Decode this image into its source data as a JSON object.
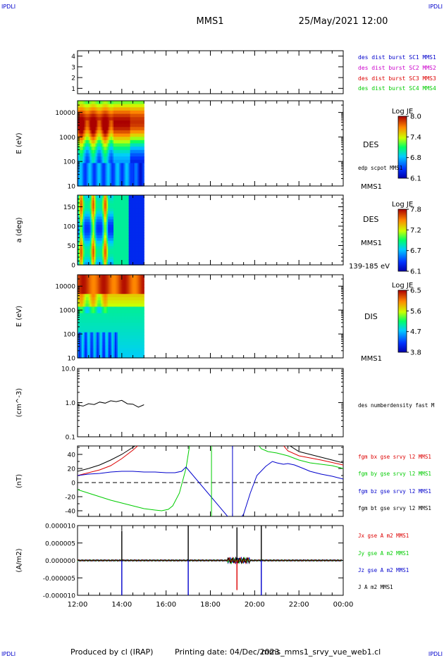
{
  "header": {
    "corner_tl": "IPDLI",
    "corner_tr": "IPDLI",
    "corner_bl": "IPDLI",
    "corner_br": "IPDLI",
    "spacecraft": "MMS1",
    "datetime": "25/May/2021 12:00"
  },
  "footer": {
    "produced_by": "Produced by cl (IRAP)",
    "printing_date": "Printing date: 04/Dec/2023",
    "filename": "mms_mms1_srvy_vue_web1.cl"
  },
  "colors": {
    "blue": "#0000cc",
    "magenta": "#cc00cc",
    "red": "#dd0000",
    "green": "#00cc00",
    "black": "#000000"
  },
  "x_axis": {
    "ticks": [
      "12:00",
      "14:00",
      "16:00",
      "18:00",
      "20:00",
      "22:00",
      "00:00"
    ],
    "range_hours": [
      12,
      24
    ]
  },
  "chart_data": [
    {
      "type": "line",
      "panel": "burst",
      "ylim": [
        0.5,
        4.5
      ],
      "yticks": [
        "1",
        "2",
        "3",
        "4"
      ],
      "legend": [
        {
          "label": "des dist burst SC1 MMS1",
          "color": "#0000cc"
        },
        {
          "label": "des dist burst SC2 MMS2",
          "color": "#cc00cc"
        },
        {
          "label": "des dist burst SC3 MMS3",
          "color": "#dd0000"
        },
        {
          "label": "des dist burst SC4 MMS4",
          "color": "#00cc00"
        }
      ]
    },
    {
      "type": "heatmap",
      "panel": "des_energy",
      "ylabel": "E (eV)",
      "yscale": "log",
      "yticks": [
        "10",
        "100",
        "1000",
        "10000"
      ],
      "ylim": [
        10,
        30000
      ],
      "x_data_end": 15.0,
      "colorbar": {
        "title": "Log JE",
        "ticks": [
          "8.0",
          "7.4",
          "6.8",
          "6.1"
        ],
        "range": [
          6.1,
          8.0
        ]
      },
      "side_labels": [
        "DES",
        "edp scpot MMS1",
        "MMS1"
      ]
    },
    {
      "type": "heatmap",
      "panel": "des_pitch",
      "ylabel": "a (deg)",
      "yticks": [
        "0",
        "50",
        "100",
        "150"
      ],
      "ylim": [
        0,
        180
      ],
      "x_data_end": 15.0,
      "colorbar": {
        "title": "Log JE",
        "ticks": [
          "7.8",
          "7.2",
          "6.7",
          "6.1"
        ],
        "range": [
          6.1,
          7.8
        ]
      },
      "side_labels": [
        "DES",
        "MMS1",
        "139-185 eV"
      ]
    },
    {
      "type": "heatmap",
      "panel": "dis_energy",
      "ylabel": "E (eV)",
      "yscale": "log",
      "yticks": [
        "10",
        "100",
        "1000",
        "10000"
      ],
      "ylim": [
        10,
        30000
      ],
      "x_data_end": 15.0,
      "colorbar": {
        "title": "Log JE",
        "ticks": [
          "6.5",
          "5.6",
          "4.7",
          "3.8"
        ],
        "range": [
          3.8,
          6.5
        ]
      },
      "side_labels": [
        "DIS",
        "MMS1"
      ]
    },
    {
      "type": "line",
      "panel": "density",
      "ylabel": "(cm^-3)",
      "yscale": "log",
      "yticks": [
        "10.0",
        "1.0",
        "0.1"
      ],
      "ylim": [
        0.1,
        10.0
      ],
      "series": [
        {
          "name": "des numberdensity fast M",
          "color": "#000000",
          "x": [
            12.0,
            12.25,
            12.5,
            12.75,
            13.0,
            13.25,
            13.5,
            13.75,
            14.0,
            14.25,
            14.5,
            14.75,
            15.0
          ],
          "y": [
            0.8,
            0.84,
            0.88,
            0.93,
            0.98,
            1.02,
            1.07,
            1.13,
            1.1,
            0.98,
            0.85,
            0.78,
            0.82
          ]
        }
      ]
    },
    {
      "type": "line",
      "panel": "fgm",
      "ylabel": "(nT)",
      "ylim": [
        -48,
        52
      ],
      "yticks": [
        "40",
        "20",
        "0",
        "-20",
        "-40"
      ],
      "series": [
        {
          "name": "fgm bx gse srvy l2 MMS1",
          "color": "#dd0000",
          "x": [
            12.0,
            12.5,
            13.0,
            13.5,
            14.0,
            14.5,
            15.0,
            21.1,
            21.5,
            22.0,
            22.5,
            23.0,
            24.0
          ],
          "y": [
            10,
            14,
            18,
            24,
            34,
            46,
            60,
            60,
            45,
            38,
            35,
            32,
            25
          ]
        },
        {
          "name": "fgm by gse srvy l2 MMS1",
          "color": "#00cc00",
          "x": [
            12.0,
            12.5,
            13.0,
            13.5,
            14.0,
            14.5,
            15.0,
            15.5,
            15.8,
            16.1,
            16.3,
            16.6,
            16.9,
            17.1,
            20.0,
            20.3,
            20.6,
            21.0,
            21.5,
            22.0,
            22.5,
            23.0,
            23.5,
            24.0
          ],
          "y": [
            -10,
            -15,
            -20,
            -25,
            -29,
            -33,
            -37,
            -39,
            -40,
            -38,
            -33,
            -15,
            20,
            60,
            60,
            48,
            44,
            42,
            38,
            32,
            28,
            26,
            24,
            20
          ]
        },
        {
          "name": "fgm bz gse srvy l2 MMS1",
          "color": "#0000cc",
          "x": [
            12.0,
            12.5,
            13.0,
            13.5,
            14.0,
            14.5,
            15.0,
            15.5,
            16.0,
            16.4,
            16.7,
            16.9,
            19.1,
            19.5,
            19.8,
            20.1,
            20.5,
            20.8,
            21.0,
            21.3,
            21.5,
            21.8,
            22.2,
            22.5,
            23.0,
            23.5,
            24.0
          ],
          "y": [
            10,
            12,
            13,
            15,
            16,
            16,
            15,
            15,
            14,
            14,
            16,
            22,
            -60,
            -45,
            -15,
            10,
            23,
            30,
            28,
            26,
            27,
            25,
            20,
            16,
            12,
            9,
            5
          ]
        },
        {
          "name": "fgm bt gse srvy l2 MMS1",
          "color": "#000000",
          "x": [
            12.0,
            12.5,
            13.0,
            13.5,
            14.0,
            14.5,
            15.0,
            21.3,
            21.6,
            22.0,
            22.5,
            23.0,
            23.5,
            24.0
          ],
          "y": [
            16,
            20,
            25,
            32,
            40,
            50,
            60,
            60,
            52,
            44,
            40,
            36,
            32,
            28
          ]
        }
      ]
    },
    {
      "type": "line",
      "panel": "current",
      "ylabel": "(A/m2)",
      "ylim": [
        -1e-05,
        1e-05
      ],
      "yticks": [
        "0.000010",
        "0.000005",
        "0.000000",
        "-0.000005",
        "-0.000010"
      ],
      "series": [
        {
          "name": "Jx gse A m2 MMS1",
          "color": "#dd0000"
        },
        {
          "name": "Jy gse A m2 MMS1",
          "color": "#00cc00"
        },
        {
          "name": "Jz gse A m2 MMS1",
          "color": "#0000cc"
        },
        {
          "name": "J A m2 MMS1",
          "color": "#000000"
        }
      ],
      "spikes": [
        {
          "x": 14.0,
          "y": 8.5e-06,
          "color": "#000000"
        },
        {
          "x": 14.0,
          "y": -1e-05,
          "color": "#0000cc"
        },
        {
          "x": 17.0,
          "y": 1e-05,
          "color": "#000000"
        },
        {
          "x": 17.0,
          "y": -1e-05,
          "color": "#0000cc"
        },
        {
          "x": 19.2,
          "y": 9.5e-06,
          "color": "#000000"
        },
        {
          "x": 19.2,
          "y": -8.5e-06,
          "color": "#dd0000"
        },
        {
          "x": 20.3,
          "y": 1e-05,
          "color": "#000000"
        },
        {
          "x": 20.3,
          "y": -1e-05,
          "color": "#0000cc"
        }
      ]
    }
  ]
}
